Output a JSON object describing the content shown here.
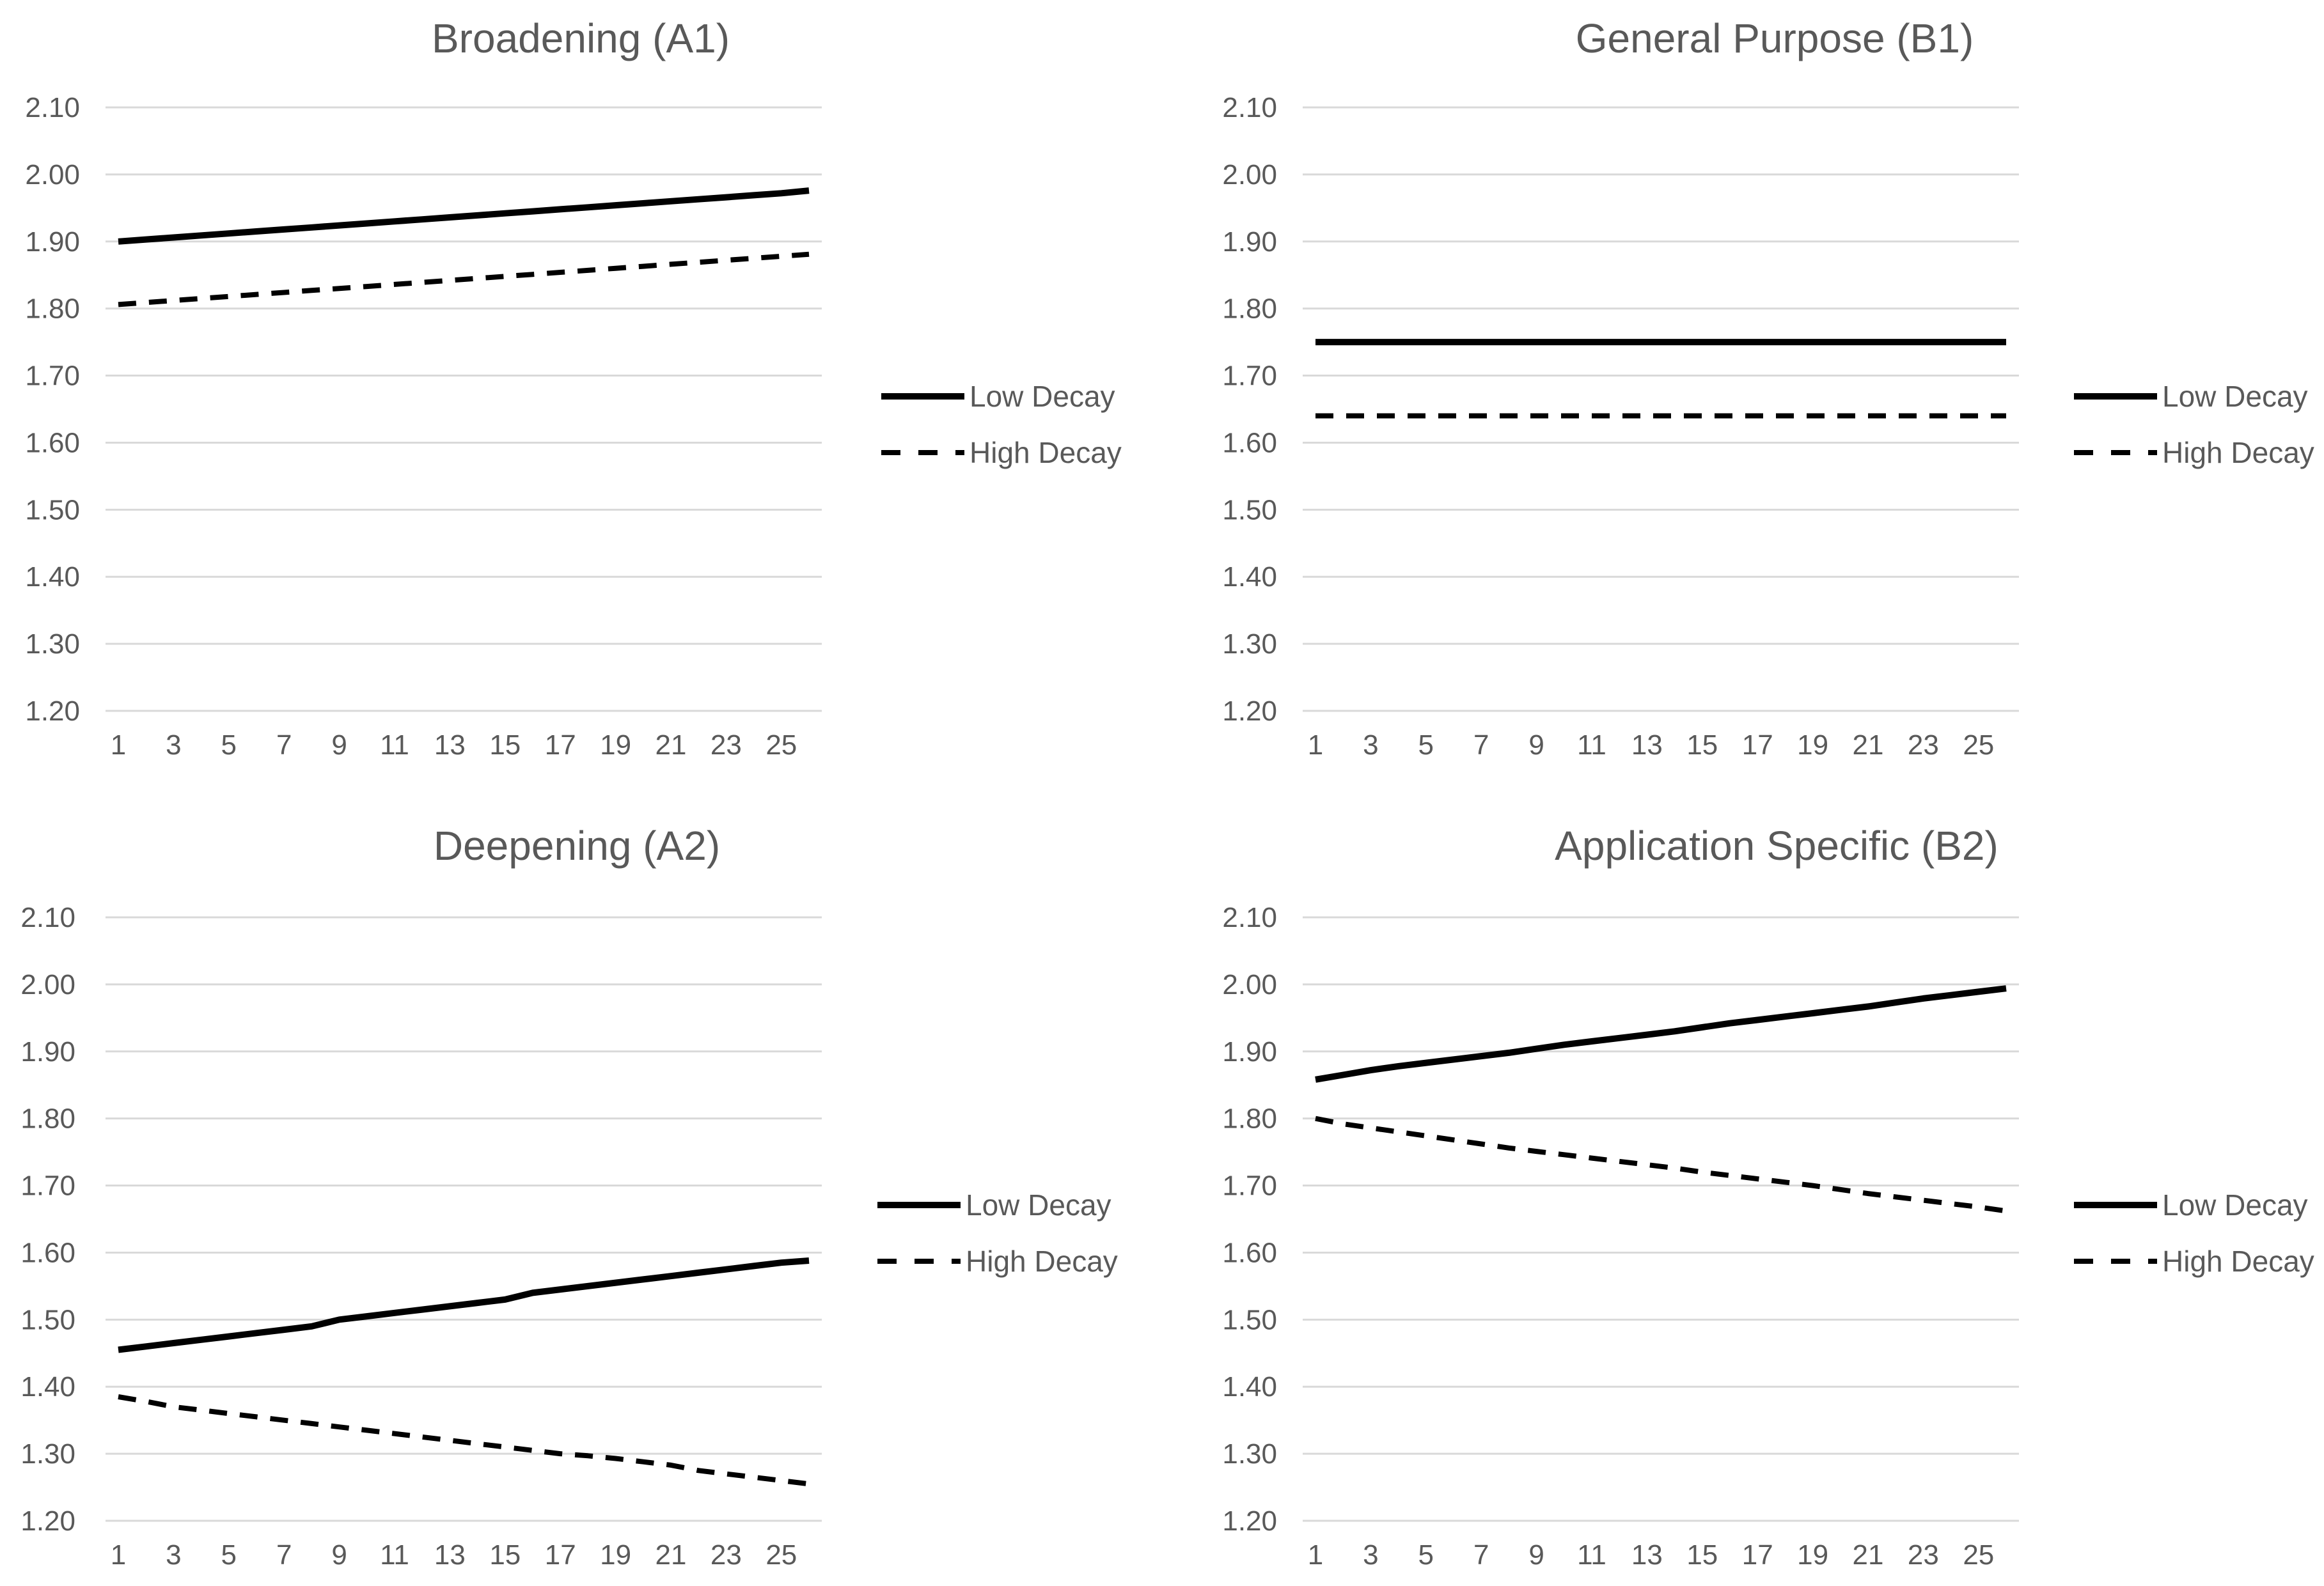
{
  "chart_data": [
    {
      "type": "line",
      "title": "Broadening (A1)",
      "x": [
        1,
        2,
        3,
        4,
        5,
        6,
        7,
        8,
        9,
        10,
        11,
        12,
        13,
        14,
        15,
        16,
        17,
        18,
        19,
        20,
        21,
        22,
        23,
        24,
        25,
        26
      ],
      "x_tick_labels": [
        "1",
        "3",
        "5",
        "7",
        "9",
        "11",
        "13",
        "15",
        "17",
        "19",
        "21",
        "23",
        "25"
      ],
      "ylim": [
        1.2,
        2.1
      ],
      "y_tick_labels": [
        "2.10",
        "2.00",
        "1.90",
        "1.80",
        "1.70",
        "1.60",
        "1.50",
        "1.40",
        "1.30",
        "1.20"
      ],
      "grid": true,
      "legend": "right",
      "series": [
        {
          "name": "Low Decay",
          "style": "solid",
          "values": [
            1.9,
            1.903,
            1.906,
            1.909,
            1.912,
            1.915,
            1.918,
            1.921,
            1.924,
            1.927,
            1.93,
            1.933,
            1.936,
            1.939,
            1.942,
            1.945,
            1.948,
            1.951,
            1.954,
            1.957,
            1.96,
            1.963,
            1.966,
            1.969,
            1.972,
            1.976
          ]
        },
        {
          "name": "High Decay",
          "style": "dashed",
          "values": [
            1.806,
            1.809,
            1.812,
            1.815,
            1.818,
            1.821,
            1.824,
            1.827,
            1.83,
            1.833,
            1.836,
            1.839,
            1.842,
            1.845,
            1.848,
            1.851,
            1.854,
            1.857,
            1.86,
            1.863,
            1.866,
            1.869,
            1.872,
            1.875,
            1.878,
            1.881
          ]
        }
      ]
    },
    {
      "type": "line",
      "title": "General Purpose (B1)",
      "x": [
        1,
        2,
        3,
        4,
        5,
        6,
        7,
        8,
        9,
        10,
        11,
        12,
        13,
        14,
        15,
        16,
        17,
        18,
        19,
        20,
        21,
        22,
        23,
        24,
        25,
        26
      ],
      "x_tick_labels": [
        "1",
        "3",
        "5",
        "7",
        "9",
        "11",
        "13",
        "15",
        "17",
        "19",
        "21",
        "23",
        "25"
      ],
      "ylim": [
        1.2,
        2.1
      ],
      "y_tick_labels": [
        "2.10",
        "2.00",
        "1.90",
        "1.80",
        "1.70",
        "1.60",
        "1.50",
        "1.40",
        "1.30",
        "1.20"
      ],
      "grid": true,
      "legend": "right",
      "series": [
        {
          "name": "Low Decay",
          "style": "solid",
          "values": [
            1.75,
            1.75,
            1.75,
            1.75,
            1.75,
            1.75,
            1.75,
            1.75,
            1.75,
            1.75,
            1.75,
            1.75,
            1.75,
            1.75,
            1.75,
            1.75,
            1.75,
            1.75,
            1.75,
            1.75,
            1.75,
            1.75,
            1.75,
            1.75,
            1.75,
            1.75
          ]
        },
        {
          "name": "High Decay",
          "style": "dashed",
          "values": [
            1.64,
            1.64,
            1.64,
            1.64,
            1.64,
            1.64,
            1.64,
            1.64,
            1.64,
            1.64,
            1.64,
            1.64,
            1.64,
            1.64,
            1.64,
            1.64,
            1.64,
            1.64,
            1.64,
            1.64,
            1.64,
            1.64,
            1.64,
            1.64,
            1.64,
            1.64
          ]
        }
      ]
    },
    {
      "type": "line",
      "title": "Deepening (A2)",
      "x": [
        1,
        2,
        3,
        4,
        5,
        6,
        7,
        8,
        9,
        10,
        11,
        12,
        13,
        14,
        15,
        16,
        17,
        18,
        19,
        20,
        21,
        22,
        23,
        24,
        25,
        26
      ],
      "x_tick_labels": [
        "1",
        "3",
        "5",
        "7",
        "9",
        "11",
        "13",
        "15",
        "17",
        "19",
        "21",
        "23",
        "25"
      ],
      "ylim": [
        1.2,
        2.1
      ],
      "y_tick_labels": [
        "2.10",
        "2.00",
        "1.90",
        "1.80",
        "1.70",
        "1.60",
        "1.50",
        "1.40",
        "1.30",
        "1.20"
      ],
      "grid": true,
      "legend": "right",
      "series": [
        {
          "name": "Low Decay",
          "style": "solid",
          "values": [
            1.455,
            1.46,
            1.465,
            1.47,
            1.475,
            1.48,
            1.485,
            1.49,
            1.5,
            1.505,
            1.51,
            1.515,
            1.52,
            1.525,
            1.53,
            1.54,
            1.545,
            1.55,
            1.555,
            1.56,
            1.565,
            1.57,
            1.575,
            1.58,
            1.585,
            1.588
          ]
        },
        {
          "name": "High Decay",
          "style": "dashed",
          "values": [
            1.385,
            1.378,
            1.37,
            1.365,
            1.36,
            1.355,
            1.35,
            1.345,
            1.34,
            1.335,
            1.33,
            1.325,
            1.32,
            1.315,
            1.31,
            1.305,
            1.3,
            1.297,
            1.293,
            1.288,
            1.283,
            1.275,
            1.27,
            1.265,
            1.26,
            1.255
          ]
        }
      ]
    },
    {
      "type": "line",
      "title": "Application Specific (B2)",
      "x": [
        1,
        2,
        3,
        4,
        5,
        6,
        7,
        8,
        9,
        10,
        11,
        12,
        13,
        14,
        15,
        16,
        17,
        18,
        19,
        20,
        21,
        22,
        23,
        24,
        25,
        26
      ],
      "x_tick_labels": [
        "1",
        "3",
        "5",
        "7",
        "9",
        "11",
        "13",
        "15",
        "17",
        "19",
        "21",
        "23",
        "25"
      ],
      "ylim": [
        1.2,
        2.1
      ],
      "y_tick_labels": [
        "2.10",
        "2.00",
        "1.90",
        "1.80",
        "1.70",
        "1.60",
        "1.50",
        "1.40",
        "1.30",
        "1.20"
      ],
      "grid": true,
      "legend": "right",
      "series": [
        {
          "name": "Low Decay",
          "style": "solid",
          "values": [
            1.858,
            1.865,
            1.872,
            1.878,
            1.883,
            1.888,
            1.893,
            1.898,
            1.904,
            1.91,
            1.915,
            1.92,
            1.925,
            1.93,
            1.936,
            1.942,
            1.947,
            1.952,
            1.957,
            1.962,
            1.967,
            1.973,
            1.979,
            1.984,
            1.989,
            1.994
          ]
        },
        {
          "name": "High Decay",
          "style": "dashed",
          "values": [
            1.8,
            1.792,
            1.786,
            1.78,
            1.774,
            1.768,
            1.762,
            1.756,
            1.751,
            1.746,
            1.741,
            1.736,
            1.731,
            1.726,
            1.72,
            1.715,
            1.71,
            1.705,
            1.7,
            1.694,
            1.688,
            1.683,
            1.678,
            1.673,
            1.668,
            1.662
          ]
        }
      ]
    }
  ]
}
